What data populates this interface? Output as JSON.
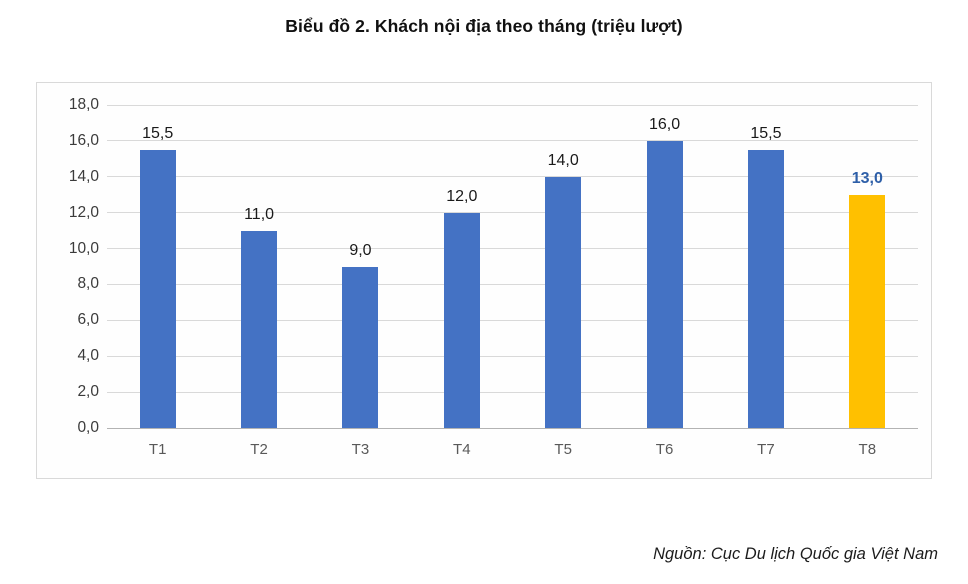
{
  "title": "Biểu đồ 2. Khách nội địa theo tháng (triệu lượt)",
  "source": "Nguồn: Cục Du lịch Quốc gia Việt Nam",
  "colors": {
    "bar_blue": "#4472C4",
    "bar_gold": "#FFC000",
    "highlight_label_blue": "#2E5FA8",
    "grid": "#D9D9D9",
    "axis": "#B3B3B3"
  },
  "chart_data": {
    "type": "bar",
    "title": "Biểu đồ 2. Khách nội địa theo tháng (triệu lượt)",
    "categories": [
      "T1",
      "T2",
      "T3",
      "T4",
      "T5",
      "T6",
      "T7",
      "T8"
    ],
    "values": [
      15.5,
      11.0,
      9.0,
      12.0,
      14.0,
      16.0,
      15.5,
      13.0
    ],
    "value_labels": [
      "15,5",
      "11,0",
      "9,0",
      "12,0",
      "14,0",
      "16,0",
      "15,5",
      "13,0"
    ],
    "bar_colors": [
      "#4472C4",
      "#4472C4",
      "#4472C4",
      "#4472C4",
      "#4472C4",
      "#4472C4",
      "#4472C4",
      "#FFC000"
    ],
    "label_colors": [
      "#1a1a1a",
      "#1a1a1a",
      "#1a1a1a",
      "#1a1a1a",
      "#1a1a1a",
      "#1a1a1a",
      "#1a1a1a",
      "#2E5FA8"
    ],
    "highlight_index": 7,
    "xlabel": "",
    "ylabel": "",
    "ylim": [
      0,
      18
    ],
    "ytick_values": [
      0,
      2,
      4,
      6,
      8,
      10,
      12,
      14,
      16,
      18
    ],
    "ytick_labels": [
      "0,0",
      "2,0",
      "4,0",
      "6,0",
      "8,0",
      "10,0",
      "12,0",
      "14,0",
      "16,0",
      "18,0"
    ],
    "grid": true,
    "legend": false
  }
}
